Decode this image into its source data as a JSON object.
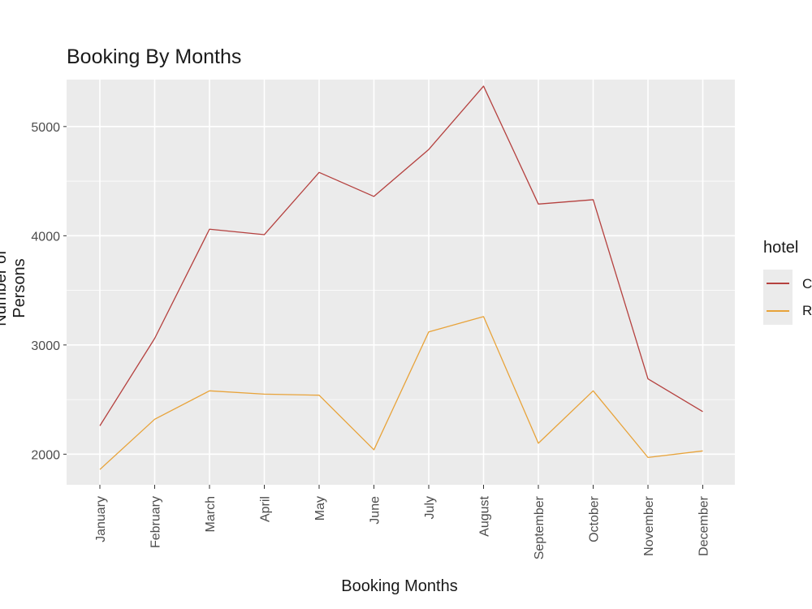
{
  "chart_data": {
    "type": "line",
    "title": "Booking By Months",
    "xlabel": "Booking Months",
    "ylabel": "Number of Persons",
    "categories": [
      "January",
      "February",
      "March",
      "April",
      "May",
      "June",
      "July",
      "August",
      "September",
      "October",
      "November",
      "December"
    ],
    "ylim": [
      1720,
      5430
    ],
    "yticks": [
      2000,
      3000,
      4000,
      5000
    ],
    "grid": true,
    "legend": {
      "title": "hotel",
      "placement": "right",
      "entries": [
        "C",
        "R"
      ]
    },
    "series": [
      {
        "name": "C",
        "color": "#b5413f",
        "values": [
          2260,
          3060,
          4060,
          4010,
          4580,
          4360,
          4790,
          5370,
          4290,
          4330,
          2690,
          2390
        ]
      },
      {
        "name": "R",
        "color": "#e8a33a",
        "values": [
          1860,
          2320,
          2580,
          2550,
          2540,
          2040,
          3120,
          3260,
          2100,
          2580,
          1970,
          2030
        ]
      }
    ]
  }
}
